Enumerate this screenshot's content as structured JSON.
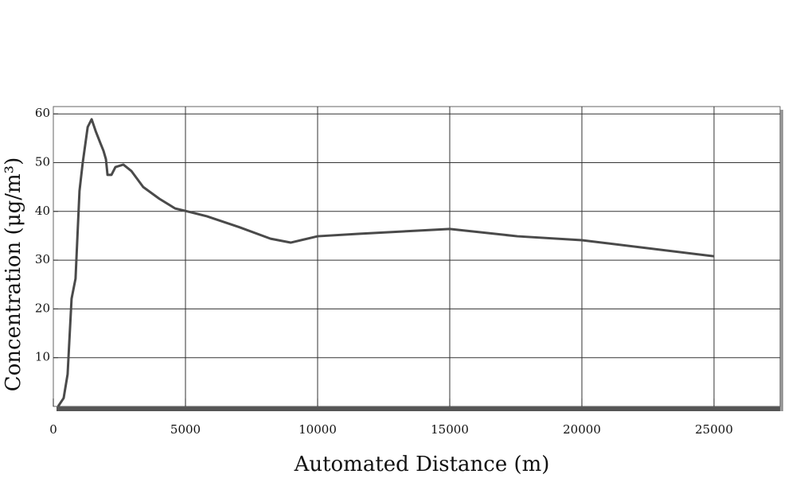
{
  "chart_data": {
    "type": "line",
    "x_label": "Automated Distance (m)",
    "y_label": "Concentration (μg/m³)",
    "series": [
      {
        "name": "Concentration",
        "color": "#4a4a4a",
        "x": [
          180,
          390,
          540,
          690,
          840,
          990,
          1110,
          1300,
          1450,
          1600,
          1780,
          1900,
          1990,
          2050,
          2200,
          2350,
          2650,
          2950,
          3400,
          4010,
          4610,
          5000,
          5810,
          7020,
          8220,
          8980,
          10000,
          11540,
          15000,
          17560,
          20000,
          25000
        ],
        "values": [
          0,
          1.7,
          6.6,
          22.1,
          26.2,
          44.2,
          49.9,
          57.3,
          58.9,
          56.5,
          54.0,
          52.4,
          50.7,
          47.5,
          47.5,
          49.1,
          49.6,
          48.3,
          45.0,
          42.6,
          40.6,
          40.1,
          39.0,
          36.8,
          34.4,
          33.6,
          34.9,
          35.4,
          36.4,
          34.9,
          34.1,
          30.8
        ]
      }
    ],
    "xlim": [
      0,
      27500
    ],
    "ylim": [
      0,
      61.5
    ],
    "xticks": [
      0,
      5000,
      10000,
      15000,
      20000,
      25000
    ],
    "yticks": [
      10,
      20,
      30,
      40,
      50,
      60
    ],
    "grid": true
  }
}
